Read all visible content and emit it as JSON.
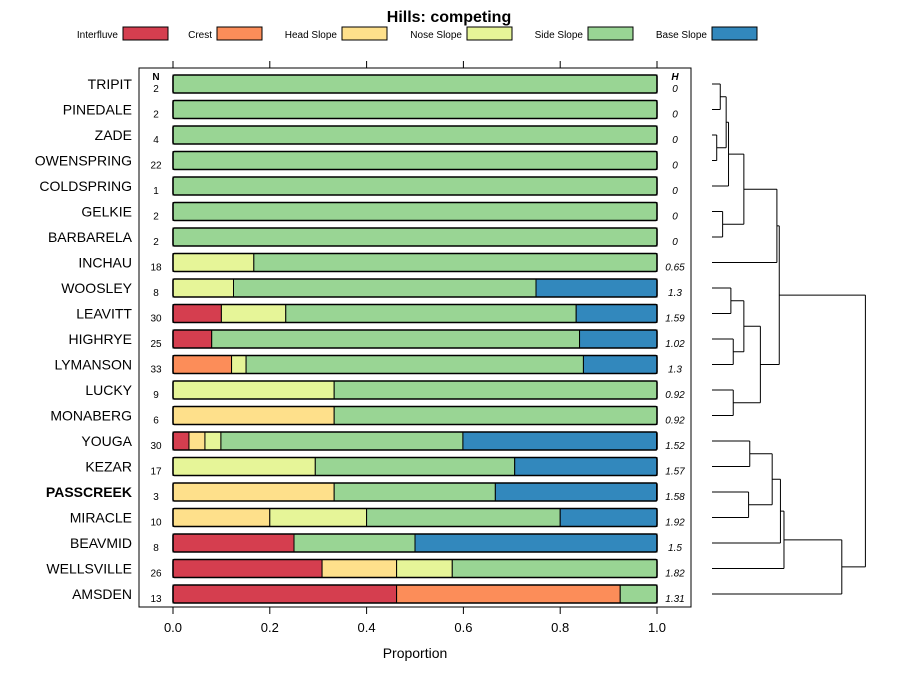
{
  "chart_data": {
    "type": "bar",
    "orientation": "horizontal",
    "stacked": true,
    "title": "Hills: competing",
    "xlabel": "Proportion",
    "ylabel": "",
    "xlim": [
      0,
      1
    ],
    "xticks": [
      "0.0",
      "0.2",
      "0.4",
      "0.6",
      "0.8",
      "1.0"
    ],
    "legend_position": "top",
    "n_header": "N",
    "h_header": "H",
    "highlighted": "PASSCREEK",
    "categories": [
      "TRIPIT",
      "PINEDALE",
      "ZADE",
      "OWENSPRING",
      "COLDSPRING",
      "GELKIE",
      "BARBARELA",
      "INCHAU",
      "WOOSLEY",
      "LEAVITT",
      "HIGHRYE",
      "LYMANSON",
      "LUCKY",
      "MONABERG",
      "YOUGA",
      "KEZAR",
      "PASSCREEK",
      "MIRACLE",
      "BEAVMID",
      "WELLSVILLE",
      "AMSDEN"
    ],
    "n": [
      "2",
      "2",
      "4",
      "22",
      "1",
      "2",
      "2",
      "18",
      "8",
      "30",
      "25",
      "33",
      "9",
      "6",
      "30",
      "17",
      "3",
      "10",
      "8",
      "26",
      "13"
    ],
    "h": [
      "0",
      "0",
      "0",
      "0",
      "0",
      "0",
      "0",
      "0.65",
      "1.3",
      "1.59",
      "1.02",
      "1.3",
      "0.92",
      "0.92",
      "1.52",
      "1.57",
      "1.58",
      "1.92",
      "1.5",
      "1.82",
      "1.31"
    ],
    "series": [
      {
        "name": "Interfluve",
        "color": "#D53E4F",
        "values": [
          0,
          0,
          0,
          0,
          0,
          0,
          0,
          0,
          0,
          0.1,
          0.08,
          0,
          0,
          0,
          0.033,
          0,
          0,
          0,
          0.25,
          0.308,
          0.462
        ]
      },
      {
        "name": "Crest",
        "color": "#FC8D59",
        "values": [
          0,
          0,
          0,
          0,
          0,
          0,
          0,
          0,
          0,
          0,
          0,
          0.121,
          0,
          0,
          0,
          0,
          0,
          0,
          0,
          0,
          0.462
        ]
      },
      {
        "name": "Head Slope",
        "color": "#FEE08B",
        "values": [
          0,
          0,
          0,
          0,
          0,
          0,
          0,
          0,
          0,
          0,
          0,
          0,
          0,
          0.333,
          0.033,
          0,
          0.333,
          0.2,
          0,
          0.154,
          0
        ]
      },
      {
        "name": "Nose Slope",
        "color": "#E6F598",
        "values": [
          0,
          0,
          0,
          0,
          0,
          0,
          0,
          0.167,
          0.125,
          0.133,
          0,
          0.03,
          0.333,
          0,
          0.033,
          0.294,
          0,
          0.2,
          0,
          0.115,
          0
        ]
      },
      {
        "name": "Side Slope",
        "color": "#99D594",
        "values": [
          1,
          1,
          1,
          1,
          1,
          1,
          1,
          0.833,
          0.625,
          0.6,
          0.76,
          0.697,
          0.667,
          0.667,
          0.5,
          0.412,
          0.333,
          0.4,
          0.25,
          0.423,
          0.076
        ]
      },
      {
        "name": "Base Slope",
        "color": "#3288BD",
        "values": [
          0,
          0,
          0,
          0,
          0,
          0,
          0,
          0,
          0.25,
          0.167,
          0.16,
          0.152,
          0,
          0,
          0.4,
          0.294,
          0.333,
          0.2,
          0.5,
          0,
          0
        ]
      }
    ],
    "dendrogram": {
      "description": "hierarchical clustering of the series",
      "leaf_order": [
        "TRIPIT",
        "PINEDALE",
        "ZADE",
        "OWENSPRING",
        "COLDSPRING",
        "GELKIE",
        "BARBARELA",
        "INCHAU",
        "WOOSLEY",
        "LEAVITT",
        "HIGHRYE",
        "LYMANSON",
        "LUCKY",
        "MONABERG",
        "YOUGA",
        "KEZAR",
        "PASSCREEK",
        "MIRACLE",
        "BEAVMID",
        "WELLSVILLE",
        "AMSDEN"
      ],
      "merges": [
        {
          "a": 0,
          "b": 1,
          "height": 0.07
        },
        {
          "a": 2,
          "b": 3,
          "height": 0.04
        },
        {
          "a": "m0",
          "b": "m1",
          "height": 0.12
        },
        {
          "a": "m2",
          "b": 4,
          "height": 0.14
        },
        {
          "a": 5,
          "b": 6,
          "height": 0.09
        },
        {
          "a": "m3",
          "b": "m4",
          "height": 0.27
        },
        {
          "a": "m5",
          "b": 7,
          "height": 0.55
        },
        {
          "a": 8,
          "b": 9,
          "height": 0.16
        },
        {
          "a": 10,
          "b": 11,
          "height": 0.18
        },
        {
          "a": "m7",
          "b": "m8",
          "height": 0.27
        },
        {
          "a": 12,
          "b": 13,
          "height": 0.18
        },
        {
          "a": "m9",
          "b": "m10",
          "height": 0.41
        },
        {
          "a": "m6",
          "b": "m11",
          "height": 0.57
        },
        {
          "a": 14,
          "b": 15,
          "height": 0.32
        },
        {
          "a": 16,
          "b": 17,
          "height": 0.31
        },
        {
          "a": "m13",
          "b": "m14",
          "height": 0.51
        },
        {
          "a": "m15",
          "b": 18,
          "height": 0.58
        },
        {
          "a": "m16",
          "b": 19,
          "height": 0.61
        },
        {
          "a": "m17",
          "b": 20,
          "height": 1.1
        },
        {
          "a": "m12",
          "b": "m18",
          "height": 1.3
        }
      ]
    }
  }
}
